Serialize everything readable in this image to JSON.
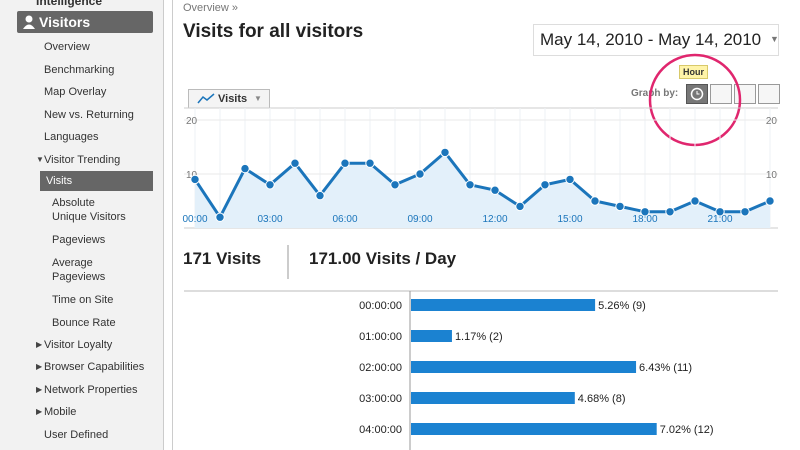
{
  "sidebar": {
    "section_top": "Intelligence",
    "section": "Visitors",
    "items": [
      "Overview",
      "Benchmarking",
      "Map Overlay",
      "New vs. Returning",
      "Languages",
      "Visitor Trending",
      "Visits",
      "Absolute Unique Visitors",
      "Pageviews",
      "Average Pageviews",
      "Time on Site",
      "Bounce Rate",
      "Visitor Loyalty",
      "Browser Capabilities",
      "Network Properties",
      "Mobile",
      "User Defined"
    ]
  },
  "header": {
    "breadcrumb": "Overview »",
    "title": "Visits for all visitors",
    "date_range": "May 14, 2010 - May 14, 2010"
  },
  "graph_controls": {
    "metric_tab": "Visits",
    "graph_by": "Graph by:",
    "tooltip": "Hour"
  },
  "chart_data": {
    "type": "line",
    "series": [
      {
        "name": "Visits",
        "color": "#1b75bb",
        "values": [
          9,
          2,
          11,
          8,
          12,
          6,
          12,
          12,
          8,
          10,
          14,
          8,
          7,
          4,
          8,
          9,
          5,
          4,
          3,
          3,
          5,
          3,
          3,
          5
        ]
      }
    ],
    "categories": [
      "00:00",
      null,
      null,
      "03:00",
      null,
      null,
      "06:00",
      null,
      null,
      "09:00",
      null,
      null,
      "12:00",
      null,
      null,
      "15:00",
      null,
      null,
      "18:00",
      null,
      null,
      "21:00",
      null,
      null
    ],
    "ylim": [
      0,
      20
    ],
    "yticks": [
      10,
      20
    ]
  },
  "summary": {
    "visits": "171 Visits",
    "per_day": "171.00 Visits / Day"
  },
  "table": {
    "rows": [
      {
        "time": "00:00:00",
        "percent": 5.26,
        "label": "5.26% (9)"
      },
      {
        "time": "01:00:00",
        "percent": 1.17,
        "label": "1.17% (2)"
      },
      {
        "time": "02:00:00",
        "percent": 6.43,
        "label": "6.43% (11)"
      },
      {
        "time": "03:00:00",
        "percent": 4.68,
        "label": "4.68% (8)"
      },
      {
        "time": "04:00:00",
        "percent": 7.02,
        "label": "7.02% (12)"
      }
    ]
  }
}
